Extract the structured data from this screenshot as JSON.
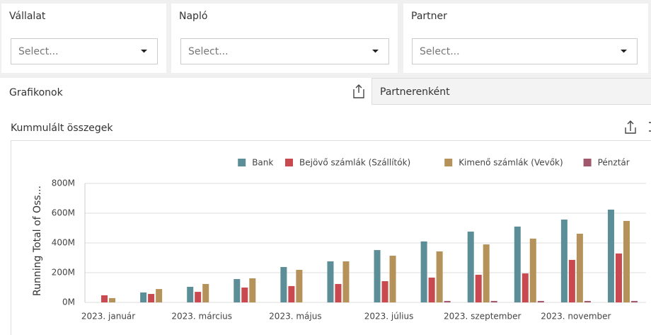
{
  "filters": [
    {
      "label": "Vállalat",
      "placeholder": "Select..."
    },
    {
      "label": "Napló",
      "placeholder": "Select..."
    },
    {
      "label": "Partner",
      "placeholder": "Select..."
    }
  ],
  "tabs": [
    "Grafikonok",
    "Partnerenként"
  ],
  "panel_title": "Kummulált összegek",
  "chart_data": {
    "type": "bar",
    "y_label": "Running Total of Oss...",
    "categories": [
      "2023. január",
      null,
      "2023. március",
      null,
      "2023. május",
      null,
      "2023. július",
      null,
      "2023. szeptember",
      null,
      "2023. november",
      null
    ],
    "series": [
      {
        "name": "Bank",
        "color": "#5b8e96",
        "values": [
          0,
          67,
          105,
          157,
          238,
          276,
          352,
          410,
          476,
          510,
          557,
          624
        ]
      },
      {
        "name": "Bejövő számlák (Szállítók)",
        "color": "#c8494f",
        "values": [
          48,
          57,
          71,
          100,
          110,
          124,
          143,
          167,
          186,
          195,
          286,
          329
        ]
      },
      {
        "name": "Kimenő számlák (Vevők)",
        "color": "#b5925a",
        "values": [
          29,
          90,
          124,
          162,
          219,
          276,
          314,
          343,
          390,
          429,
          462,
          548
        ]
      },
      {
        "name": "Pénztár",
        "color": "#a0586c",
        "values": [
          0,
          0,
          0,
          0,
          0,
          0,
          0,
          10,
          10,
          10,
          10,
          10
        ]
      }
    ],
    "ylim": [
      0,
      800
    ],
    "yticks": [
      {
        "value": 0,
        "label": "0M"
      },
      {
        "value": 200,
        "label": "200M"
      },
      {
        "value": 400,
        "label": "400M"
      },
      {
        "value": 600,
        "label": "600M"
      },
      {
        "value": 800,
        "label": "800M"
      }
    ],
    "grid": true,
    "legend": "top-right"
  }
}
